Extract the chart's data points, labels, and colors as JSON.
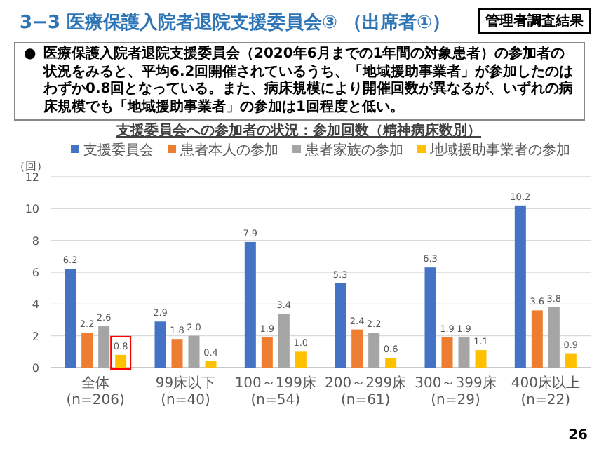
{
  "chart_data": {
    "type": "bar",
    "title": "3−3 医療保護入院者退院支援委員会③ （出席者①）",
    "subtitle": "支援委員会への参加者の状況：参加回数（精神病床数別）",
    "ylabel": "（回）",
    "annotations": [
      "管理者調査結果",
      "●",
      "医療保護入院者退院支援委員会（2020年6月までの1年間の対象患者）の参加者の状況をみると、平均6.2回開催されているうち、「地域援助事業者」が参加したのはわずか0.8回となっている。また、病床規模により開催回数が異なるが、いずれの病床規模でも「地域援助事業者」の参加は1回程度と低い。",
      "26"
    ],
    "categories": [
      "全体\n(n=206)",
      "99床以下\n(n=40)",
      "100～199床\n(n=54)",
      "200～299床\n(n=61)",
      "300～399床\n(n=29)",
      "400床以上\n(n=22)"
    ],
    "series": [
      {
        "name": "支援委員会",
        "color": "#4472c4",
        "values": [
          6.2,
          2.9,
          7.9,
          5.3,
          6.3,
          10.2
        ],
        "value_labels": [
          "6.2",
          "2.9",
          "7.9",
          "5.3",
          "6.3",
          "10.2"
        ]
      },
      {
        "name": "患者本人の参加",
        "color": "#ed7d31",
        "values": [
          2.2,
          1.8,
          1.9,
          2.4,
          1.9,
          3.6
        ],
        "value_labels": [
          "2.2",
          "1.8",
          "1.9",
          "2.4",
          "1.9",
          "3.6"
        ]
      },
      {
        "name": "患者家族の参加",
        "color": "#a5a5a5",
        "values": [
          2.6,
          2.0,
          3.4,
          2.2,
          1.9,
          3.8
        ],
        "value_labels": [
          "2.6",
          "2.0",
          "3.4",
          "2.2",
          "1.9",
          "3.8"
        ]
      },
      {
        "name": "地域援助事業者の参加",
        "color": "#ffc000",
        "values": [
          0.8,
          0.4,
          1.0,
          0.6,
          1.1,
          0.9
        ],
        "value_labels": [
          "0.8",
          "0.4",
          "1.0",
          "0.6",
          "1.1",
          "0.9"
        ]
      }
    ],
    "ylim": [
      0,
      12
    ],
    "yticks": [
      0,
      2,
      4,
      6,
      8,
      10,
      12
    ],
    "grid": "y",
    "legend": "top"
  }
}
